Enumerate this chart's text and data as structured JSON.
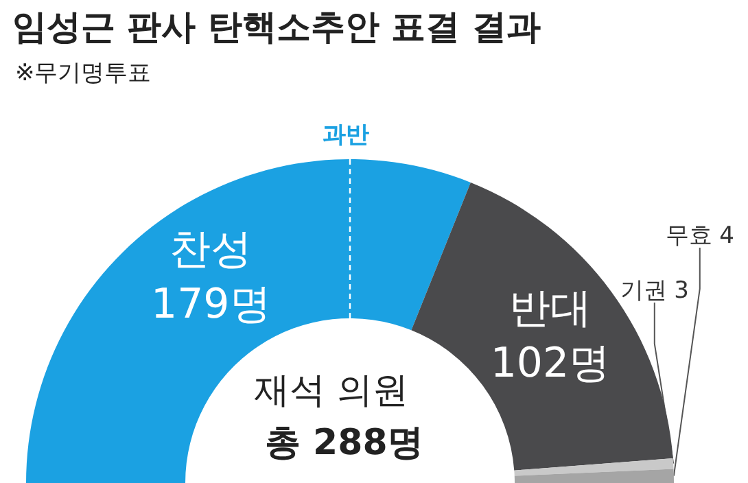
{
  "chart_data": {
    "type": "donut",
    "title": "임성근 판사 탄핵소추안 표결 결과",
    "subtitle": "※무기명투표",
    "categories": [
      "찬성",
      "반대",
      "기권",
      "무효"
    ],
    "values": [
      179,
      102,
      3,
      4
    ],
    "value_labels": [
      "179명",
      "102명",
      "3",
      "4"
    ],
    "colors": [
      "#1ba1e2",
      "#4a4a4c",
      "#c9c9c9",
      "#a5a5a5"
    ],
    "annotations": [
      "과반",
      "재석 의원",
      "총 288명"
    ],
    "legend": false
  }
}
